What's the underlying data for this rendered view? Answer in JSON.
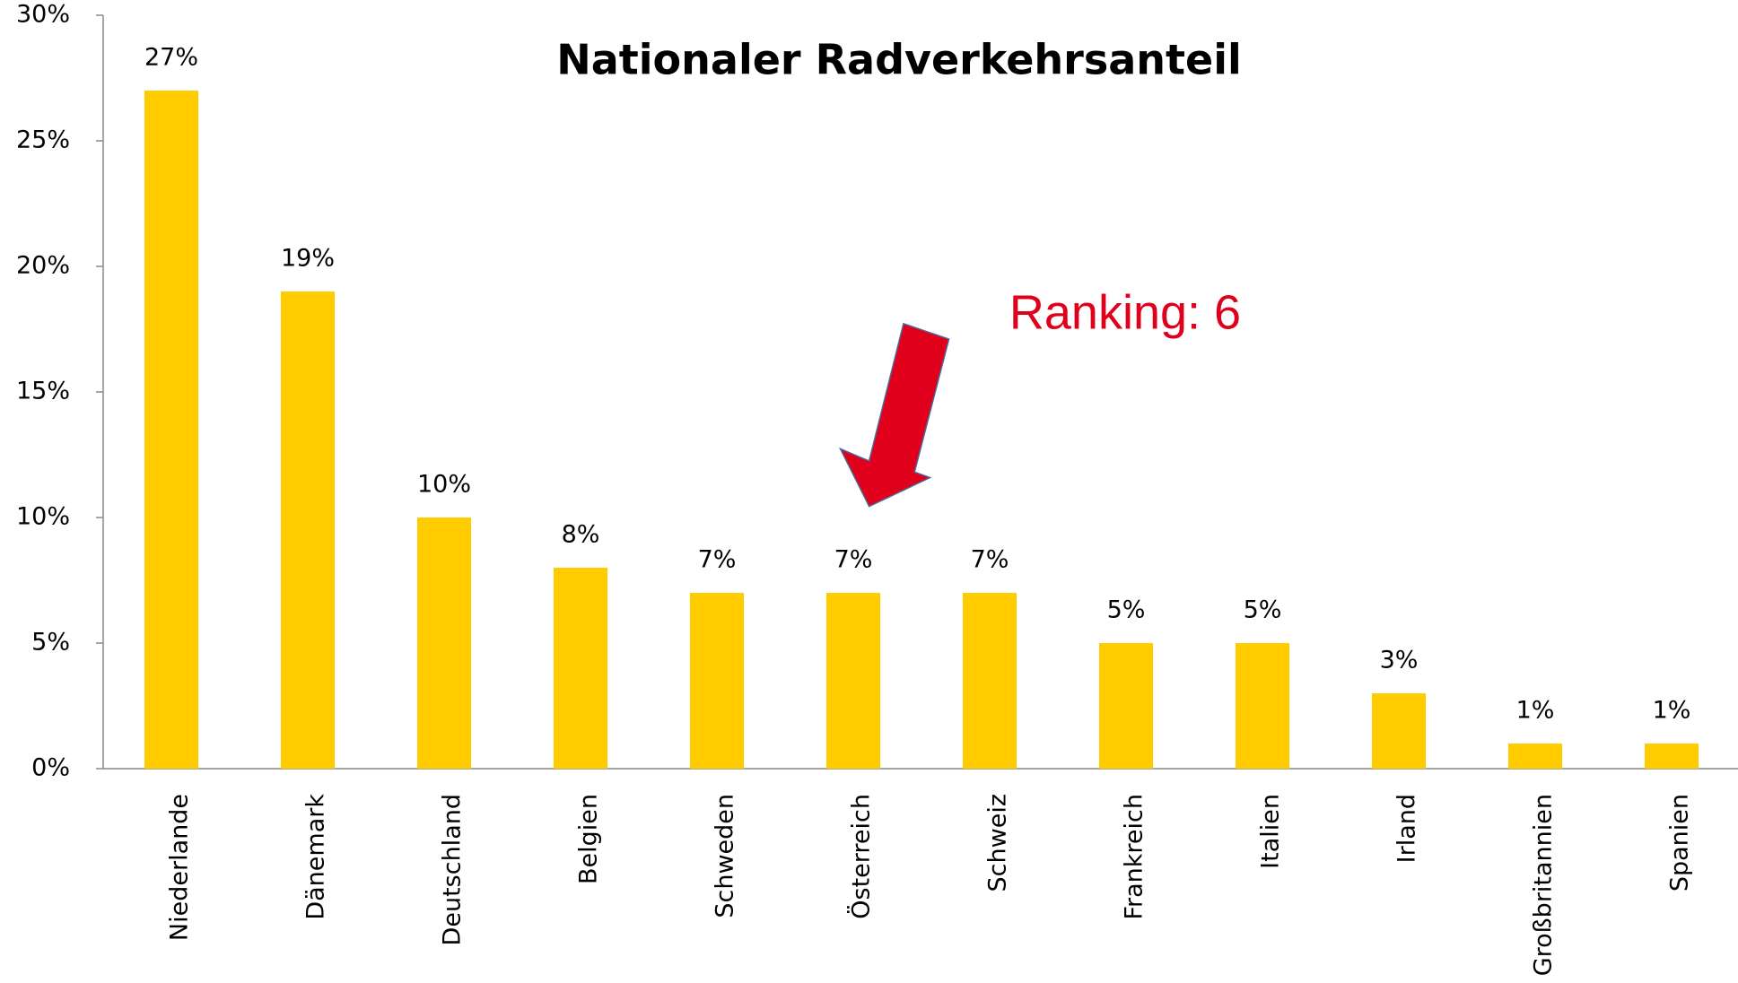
{
  "chart_data": {
    "type": "bar",
    "title": "Nationaler Radverkehrsanteil",
    "categories": [
      "Niederlande",
      "Dänemark",
      "Deutschland",
      "Belgien",
      "Schweden",
      "Österreich",
      "Schweiz",
      "Frankreich",
      "Italien",
      "Irland",
      "Großbritannien",
      "Spanien"
    ],
    "values": [
      27,
      19,
      10,
      8,
      7,
      7,
      7,
      5,
      5,
      3,
      1,
      1
    ],
    "value_labels": [
      "27%",
      "19%",
      "10%",
      "8%",
      "7%",
      "7%",
      "7%",
      "5%",
      "5%",
      "3%",
      "1%",
      "1%"
    ],
    "color": "#ffcc00",
    "ylim": [
      0,
      30
    ],
    "yticks": [
      {
        "value": 0,
        "label": "0%"
      },
      {
        "value": 5,
        "label": "5%"
      },
      {
        "value": 10,
        "label": "10%"
      },
      {
        "value": 15,
        "label": "15%"
      },
      {
        "value": 20,
        "label": "20%"
      },
      {
        "value": 25,
        "label": "25%"
      },
      {
        "value": 30,
        "label": "30%"
      }
    ],
    "grid": false,
    "annotation": "Ranking: 6"
  }
}
